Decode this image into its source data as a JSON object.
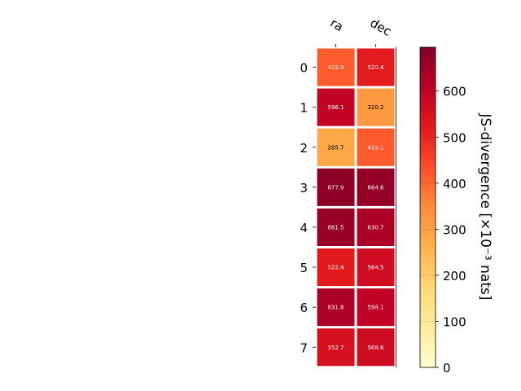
{
  "chart_data": {
    "type": "heatmap",
    "columns": [
      "ra",
      "dec"
    ],
    "rows": [
      "0",
      "1",
      "2",
      "3",
      "4",
      "5",
      "6",
      "7"
    ],
    "values": [
      [
        415.9,
        520.4
      ],
      [
        596.1,
        320.2
      ],
      [
        285.7,
        419.1
      ],
      [
        677.9,
        664.6
      ],
      [
        661.5,
        630.7
      ],
      [
        522.4,
        564.5
      ],
      [
        631.8,
        598.1
      ],
      [
        552.7,
        568.6
      ]
    ],
    "cell_labels": [
      [
        "415.9",
        "520.4"
      ],
      [
        "596.1",
        "320.2"
      ],
      [
        "285.7",
        "419.1"
      ],
      [
        "677.9",
        "664.6"
      ],
      [
        "661.5",
        "630.7"
      ],
      [
        "522.4",
        "564.5"
      ],
      [
        "631.8",
        "598.1"
      ],
      [
        "552.7",
        "568.6"
      ]
    ],
    "colorbar": {
      "label": "JS-divergence [×10⁻³ nats]",
      "range": [
        0,
        695
      ],
      "ticks": [
        0,
        100,
        200,
        300,
        400,
        500,
        600
      ],
      "tick_labels": [
        "0",
        "100",
        "200",
        "300",
        "400",
        "500",
        "600"
      ],
      "colormap": "YlOrRd"
    },
    "x_tick_position": "top",
    "grid": false
  }
}
